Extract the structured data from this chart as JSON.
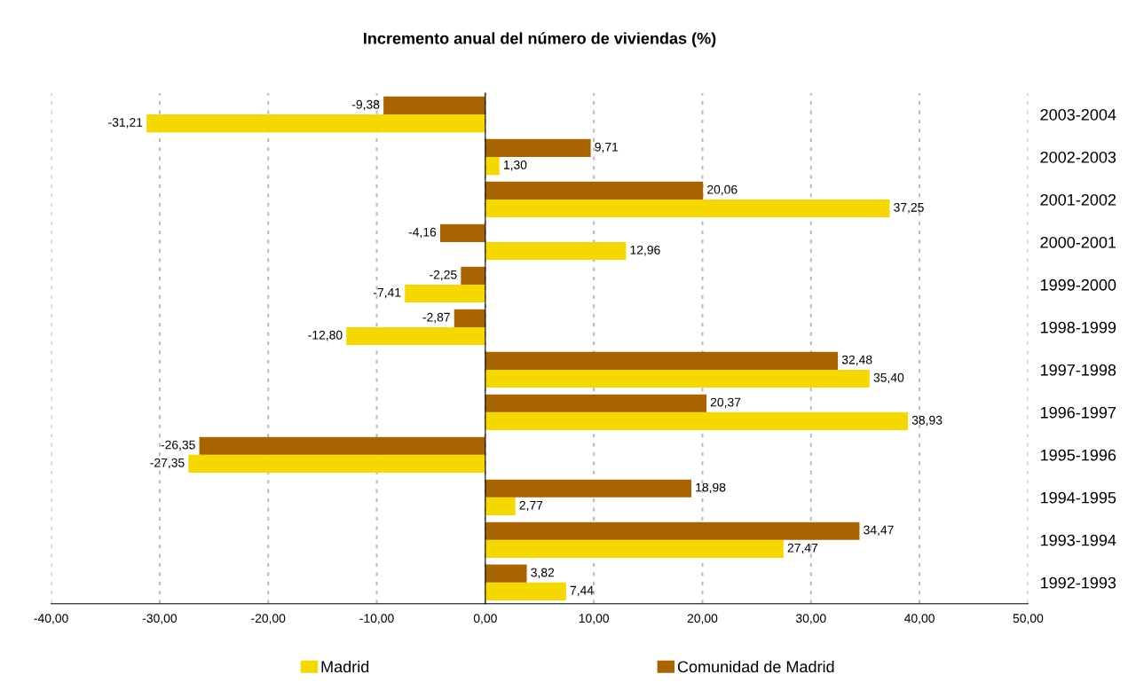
{
  "chart_data": {
    "type": "bar",
    "orientation": "horizontal",
    "title": "Incremento anual del número de viviendas (%)",
    "categories": [
      "2003-2004",
      "2002-2003",
      "2001-2002",
      "2000-2001",
      "1999-2000",
      "1998-1999",
      "1997-1998",
      "1996-1997",
      "1995-1996",
      "1994-1995",
      "1993-1994",
      "1992-1993"
    ],
    "series": [
      {
        "name": "Madrid",
        "color": "#f5d800",
        "values": [
          -31.21,
          1.3,
          37.25,
          12.96,
          -7.41,
          -12.8,
          35.4,
          38.93,
          -27.35,
          2.77,
          27.47,
          7.44
        ],
        "value_labels": [
          "-31,21",
          "1,30",
          "37,25",
          "12,96",
          "-7,41",
          "-12,80",
          "35,40",
          "38,93",
          "-27,35",
          "2,77",
          "27,47",
          "7,44"
        ]
      },
      {
        "name": "Comunidad de Madrid",
        "color": "#a86400",
        "values": [
          -9.38,
          9.71,
          20.06,
          -4.16,
          -2.25,
          -2.87,
          32.48,
          20.37,
          -26.35,
          18.98,
          34.47,
          3.82
        ],
        "value_labels": [
          "-9,38",
          "9,71",
          "20,06",
          "-4,16",
          "-2,25",
          "-2,87",
          "32,48",
          "20,37",
          "-26,35",
          "18,98",
          "34,47",
          "3,82"
        ]
      }
    ],
    "xlim": [
      -40,
      50
    ],
    "xticks": [
      {
        "value": -40,
        "label": "-40,00"
      },
      {
        "value": -30,
        "label": "-30,00"
      },
      {
        "value": -20,
        "label": "-20,00"
      },
      {
        "value": -10,
        "label": "-10,00"
      },
      {
        "value": 0,
        "label": "0,00"
      },
      {
        "value": 10,
        "label": "10,00"
      },
      {
        "value": 20,
        "label": "20,00"
      },
      {
        "value": 30,
        "label": "30,00"
      },
      {
        "value": 40,
        "label": "40,00"
      },
      {
        "value": 50,
        "label": "50,00"
      }
    ],
    "grid": "x",
    "legend": "bottom"
  }
}
